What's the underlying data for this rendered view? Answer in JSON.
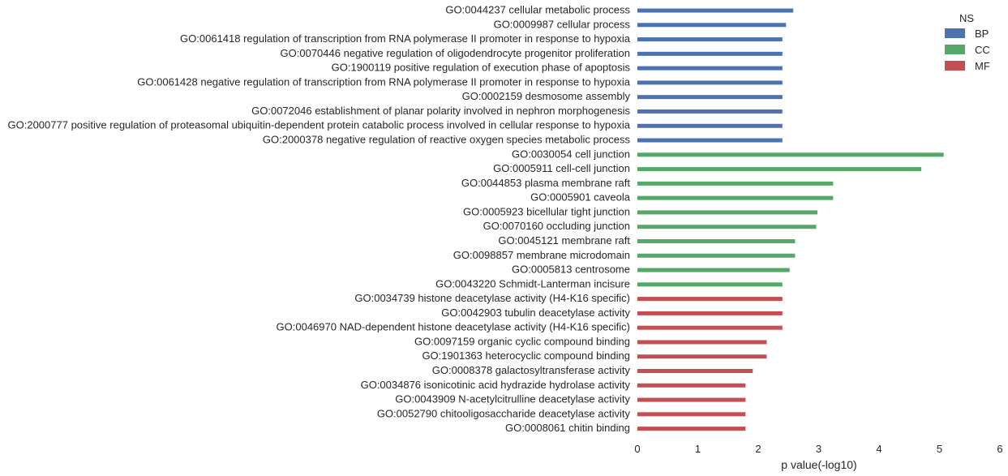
{
  "chart_data": {
    "type": "bar",
    "orientation": "horizontal",
    "title": "",
    "xlabel": "p value(-log10)",
    "ylabel": "",
    "xlim": [
      0,
      6
    ],
    "xticks": [
      "0",
      "1",
      "2",
      "3",
      "4",
      "5",
      "6"
    ],
    "grid": false,
    "legend": {
      "title": "NS",
      "position": "top-right",
      "entries": [
        {
          "name": "BP",
          "color": "#4c72b0"
        },
        {
          "name": "CC",
          "color": "#55a868"
        },
        {
          "name": "MF",
          "color": "#c44e52"
        }
      ]
    },
    "bars": [
      {
        "label": "GO:0044237 cellular metabolic process",
        "ns": "BP",
        "value": 2.58
      },
      {
        "label": "GO:0009987 cellular process",
        "ns": "BP",
        "value": 2.46
      },
      {
        "label": "GO:0061418 regulation of transcription from RNA polymerase II promoter in response to hypoxia",
        "ns": "BP",
        "value": 2.4
      },
      {
        "label": "GO:0070446 negative regulation of oligodendrocyte progenitor proliferation",
        "ns": "BP",
        "value": 2.4
      },
      {
        "label": "GO:1900119 positive regulation of execution phase of apoptosis",
        "ns": "BP",
        "value": 2.4
      },
      {
        "label": "GO:0061428 negative regulation of transcription from RNA polymerase II promoter in response to hypoxia",
        "ns": "BP",
        "value": 2.4
      },
      {
        "label": "GO:0002159 desmosome assembly",
        "ns": "BP",
        "value": 2.4
      },
      {
        "label": "GO:0072046 establishment of planar polarity involved in nephron morphogenesis",
        "ns": "BP",
        "value": 2.4
      },
      {
        "label": "GO:2000777 positive regulation of proteasomal ubiquitin-dependent protein catabolic process involved in cellular response to hypoxia",
        "ns": "BP",
        "value": 2.4
      },
      {
        "label": "GO:2000378 negative regulation of reactive oxygen species metabolic process",
        "ns": "BP",
        "value": 2.4
      },
      {
        "label": "GO:0030054 cell junction",
        "ns": "CC",
        "value": 5.07
      },
      {
        "label": "GO:0005911 cell-cell junction",
        "ns": "CC",
        "value": 4.7
      },
      {
        "label": "GO:0044853 plasma membrane raft",
        "ns": "CC",
        "value": 3.24
      },
      {
        "label": "GO:0005901 caveola",
        "ns": "CC",
        "value": 3.24
      },
      {
        "label": "GO:0005923 bicellular tight junction",
        "ns": "CC",
        "value": 2.98
      },
      {
        "label": "GO:0070160 occluding junction",
        "ns": "CC",
        "value": 2.96
      },
      {
        "label": "GO:0045121 membrane raft",
        "ns": "CC",
        "value": 2.61
      },
      {
        "label": "GO:0098857 membrane microdomain",
        "ns": "CC",
        "value": 2.61
      },
      {
        "label": "GO:0005813 centrosome",
        "ns": "CC",
        "value": 2.52
      },
      {
        "label": "GO:0043220 Schmidt-Lanterman incisure",
        "ns": "CC",
        "value": 2.4
      },
      {
        "label": "GO:0034739 histone deacetylase activity (H4-K16 specific)",
        "ns": "MF",
        "value": 2.4
      },
      {
        "label": "GO:0042903 tubulin deacetylase activity",
        "ns": "MF",
        "value": 2.4
      },
      {
        "label": "GO:0046970 NAD-dependent histone deacetylase activity (H4-K16 specific)",
        "ns": "MF",
        "value": 2.4
      },
      {
        "label": "GO:0097159 organic cyclic compound binding",
        "ns": "MF",
        "value": 2.14
      },
      {
        "label": "GO:1901363 heterocyclic compound binding",
        "ns": "MF",
        "value": 2.14
      },
      {
        "label": "GO:0008378 galactosyltransferase activity",
        "ns": "MF",
        "value": 1.91
      },
      {
        "label": "GO:0034876 isonicotinic acid hydrazide hydrolase activity",
        "ns": "MF",
        "value": 1.79
      },
      {
        "label": "GO:0043909 N-acetylcitrulline deacetylase activity",
        "ns": "MF",
        "value": 1.79
      },
      {
        "label": "GO:0052790 chitooligosaccharide deacetylase activity",
        "ns": "MF",
        "value": 1.79
      },
      {
        "label": "GO:0008061 chitin binding",
        "ns": "MF",
        "value": 1.79
      }
    ]
  }
}
